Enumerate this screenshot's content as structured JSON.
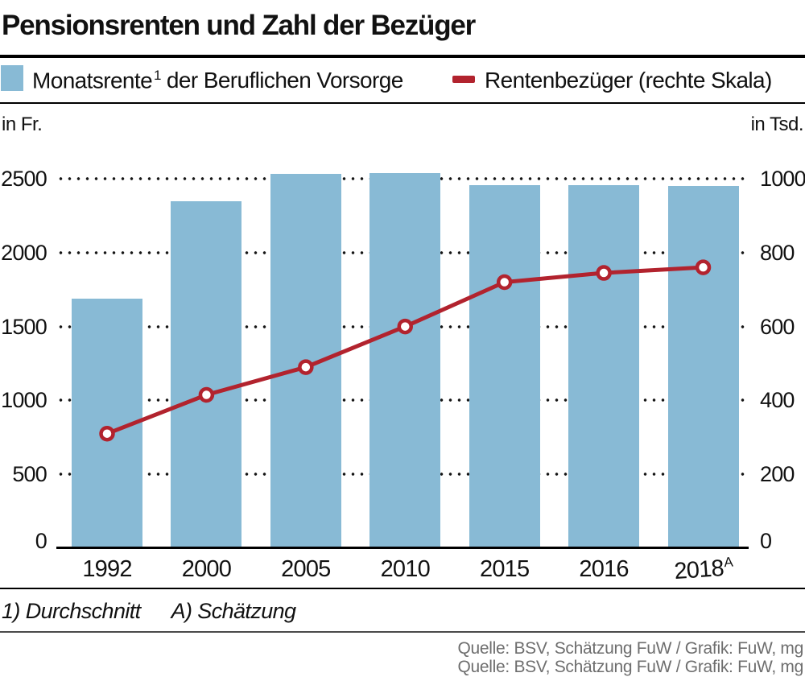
{
  "title": "Pensionsrenten und Zahl der Bezüger",
  "legend": {
    "bar_pre": "Monatsrente",
    "bar_sup": "1",
    "bar_post": "der Beruflichen Vorsorge",
    "line_label": "Rentenbezüger (rechte Skala)"
  },
  "footnote": {
    "note1": "1) Durchschnitt",
    "note2": "A) Schätzung"
  },
  "source": {
    "text": "Quelle: BSV, Schätzung FuW / Grafik: FuW, mg",
    "clipped_text": "Quelle: BSV, Schätzung FuW / Grafik: FuW, mg"
  },
  "colors": {
    "bar": "#88BAD5",
    "line": "#B2232E",
    "marker_fill": "#FFFFFF",
    "grid_dot": "#161616",
    "text": "#111111",
    "source_text": "#6E6E6E"
  },
  "chart_data": {
    "type": "bar+line",
    "title": "Pensionsrenten und Zahl der Bezüger",
    "categories": [
      "1992",
      "2000",
      "2005",
      "2010",
      "2015",
      "2016",
      "2018"
    ],
    "last_category_superscript": "A",
    "series": [
      {
        "name": "Monatsrente der Beruflichen Vorsorge",
        "type": "bar",
        "axis": "left",
        "values": [
          1690,
          2350,
          2535,
          2540,
          2455,
          2455,
          2450
        ]
      },
      {
        "name": "Rentenbezüger (rechte Skala)",
        "type": "line",
        "axis": "right",
        "values": [
          310,
          415,
          490,
          600,
          720,
          745,
          760
        ]
      }
    ],
    "left_axis": {
      "label": "in Fr.",
      "ticks": [
        0,
        500,
        1000,
        1500,
        2000,
        2500
      ],
      "range": [
        0,
        2500
      ]
    },
    "right_axis": {
      "label": "in Tsd.",
      "ticks": [
        0,
        200,
        400,
        600,
        800,
        1000
      ],
      "range": [
        0,
        1000
      ]
    },
    "grid": "dotted-horizontal",
    "legend_position": "top"
  }
}
